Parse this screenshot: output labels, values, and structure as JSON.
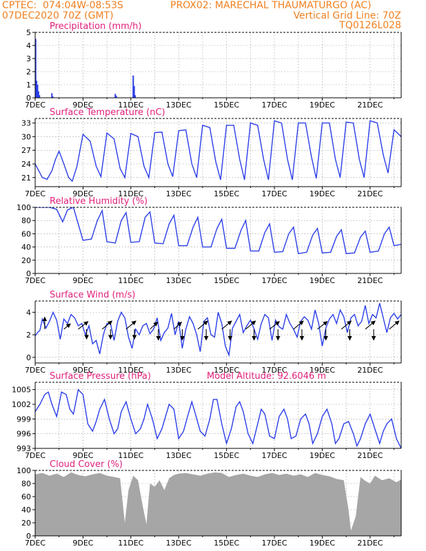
{
  "header": {
    "line1_left": "CPTEC:  074:04W-08:53S",
    "line1_right": "PROX02: MARECHAL THAUMATURGO (AC)",
    "line2_left": "07DEC2020 70Z (GMT)",
    "line2_right": "Vertical Grid Line: 70Z",
    "line3_right": "TQ0126L028"
  },
  "colors": {
    "header_text": "#f08020",
    "title_text": "#e0207a",
    "series_line": "#2a3ee8",
    "bar": "#2a3ee8",
    "cloud": "#a6a6a6",
    "arrow": "#000000"
  },
  "chart_data": [
    {
      "id": "precip",
      "type": "bar",
      "title": "Precipitation (mm/h)",
      "x_ticks": [
        "7DEC",
        "9DEC",
        "11DEC",
        "13DEC",
        "15DEC",
        "17DEC",
        "19DEC",
        "21DEC"
      ],
      "x_range_days": [
        7.0,
        22.3
      ],
      "ylim": [
        0,
        5
      ],
      "y_ticks": [
        "0",
        "1",
        "2",
        "3",
        "4",
        "5"
      ],
      "grid": "dotted",
      "x": [
        7.02,
        7.06,
        7.1,
        7.14,
        7.18,
        7.7,
        7.74,
        10.35,
        10.39,
        11.1,
        11.14,
        11.18
      ],
      "values": [
        4.5,
        1.3,
        1.0,
        0.5,
        0.2,
        0.35,
        0.1,
        0.3,
        0.15,
        1.7,
        0.9,
        0.2
      ]
    },
    {
      "id": "temp",
      "type": "line",
      "title": "Surface Temperature (nC)",
      "x_ticks": [
        "7DEC",
        "9DEC",
        "11DEC",
        "13DEC",
        "15DEC",
        "17DEC",
        "19DEC",
        "21DEC"
      ],
      "x_range_days": [
        7.0,
        22.3
      ],
      "ylim": [
        19,
        34
      ],
      "y_ticks": [
        "21",
        "24",
        "27",
        "30",
        "33"
      ],
      "grid": "dotted",
      "x": [
        7.0,
        7.15,
        7.3,
        7.5,
        7.7,
        7.85,
        8.0,
        8.2,
        8.4,
        8.55,
        8.75,
        9.0,
        9.3,
        9.55,
        9.75,
        10.0,
        10.3,
        10.55,
        10.75,
        11.0,
        11.3,
        11.55,
        11.75,
        12.0,
        12.3,
        12.55,
        12.75,
        13.0,
        13.3,
        13.55,
        13.75,
        14.0,
        14.3,
        14.55,
        14.75,
        15.0,
        15.3,
        15.55,
        15.75,
        16.0,
        16.3,
        16.55,
        16.75,
        17.0,
        17.3,
        17.55,
        17.75,
        18.0,
        18.3,
        18.55,
        18.75,
        19.0,
        19.3,
        19.55,
        19.75,
        20.0,
        20.3,
        20.55,
        20.75,
        21.0,
        21.3,
        21.55,
        21.75,
        22.0,
        22.3
      ],
      "values": [
        24.0,
        22.5,
        21.0,
        20.6,
        22.5,
        25.0,
        26.8,
        24.0,
        21.0,
        20.2,
        23.5,
        30.5,
        29.0,
        23.5,
        21.2,
        30.8,
        29.5,
        23.0,
        21.0,
        30.7,
        30.0,
        23.5,
        21.0,
        30.9,
        31.0,
        24.0,
        21.2,
        31.3,
        31.5,
        24.0,
        21.0,
        32.5,
        32.0,
        24.5,
        20.5,
        32.5,
        32.5,
        25.0,
        20.5,
        33.0,
        32.5,
        25.0,
        20.5,
        33.5,
        33.0,
        25.0,
        20.5,
        33.0,
        33.0,
        25.5,
        20.8,
        33.0,
        33.0,
        25.0,
        21.0,
        33.2,
        33.0,
        25.0,
        21.0,
        33.5,
        33.0,
        26.0,
        22.0,
        31.5,
        30.0
      ]
    },
    {
      "id": "rh",
      "type": "line",
      "title": "Relative Humidity (%)",
      "x_ticks": [
        "7DEC",
        "9DEC",
        "11DEC",
        "13DEC",
        "15DEC",
        "17DEC",
        "19DEC",
        "21DEC"
      ],
      "x_range_days": [
        7.0,
        22.3
      ],
      "ylim": [
        0,
        100
      ],
      "y_ticks": [
        "0",
        "20",
        "40",
        "60",
        "80",
        "100"
      ],
      "grid": "dotted",
      "x": [
        7.0,
        7.3,
        7.6,
        7.9,
        8.15,
        8.35,
        8.6,
        9.0,
        9.35,
        9.6,
        9.8,
        10.0,
        10.35,
        10.6,
        10.8,
        11.0,
        11.35,
        11.6,
        11.8,
        12.0,
        12.35,
        12.6,
        12.8,
        13.0,
        13.35,
        13.6,
        13.8,
        14.0,
        14.35,
        14.6,
        14.8,
        15.0,
        15.35,
        15.6,
        15.8,
        16.0,
        16.35,
        16.6,
        16.8,
        17.0,
        17.35,
        17.6,
        17.8,
        18.0,
        18.35,
        18.6,
        18.8,
        19.0,
        19.35,
        19.6,
        19.8,
        20.0,
        20.35,
        20.6,
        20.8,
        21.0,
        21.35,
        21.6,
        21.8,
        22.0,
        22.3
      ],
      "values": [
        100,
        100,
        100,
        97,
        78,
        96,
        100,
        50,
        52,
        80,
        95,
        48,
        46,
        80,
        92,
        47,
        48,
        85,
        93,
        46,
        45,
        75,
        88,
        42,
        42,
        70,
        85,
        40,
        40,
        68,
        82,
        38,
        38,
        65,
        80,
        34,
        34,
        62,
        75,
        32,
        33,
        60,
        70,
        30,
        32,
        58,
        68,
        31,
        32,
        56,
        66,
        30,
        31,
        55,
        64,
        32,
        34,
        60,
        70,
        42,
        44
      ]
    },
    {
      "id": "wind",
      "type": "line",
      "title": "Surface Wind (m/s)",
      "x_ticks": [
        "7DEC",
        "9DEC",
        "11DEC",
        "13DEC",
        "15DEC",
        "17DEC",
        "19DEC",
        "21DEC"
      ],
      "x_range_days": [
        7.0,
        22.3
      ],
      "ylim": [
        -0.5,
        5.0
      ],
      "y_ticks": [
        "0",
        "2",
        "4"
      ],
      "grid": "dotted",
      "x": [
        7.0,
        7.1,
        7.2,
        7.3,
        7.45,
        7.6,
        7.75,
        7.9,
        8.05,
        8.2,
        8.35,
        8.5,
        8.65,
        8.8,
        8.95,
        9.1,
        9.25,
        9.4,
        9.55,
        9.7,
        9.85,
        10.0,
        10.15,
        10.3,
        10.45,
        10.6,
        10.75,
        10.9,
        11.05,
        11.2,
        11.35,
        11.5,
        11.65,
        11.8,
        11.95,
        12.1,
        12.25,
        12.4,
        12.55,
        12.7,
        12.85,
        13.0,
        13.15,
        13.3,
        13.45,
        13.6,
        13.75,
        13.9,
        14.05,
        14.2,
        14.35,
        14.5,
        14.65,
        14.8,
        14.95,
        15.1,
        15.25,
        15.4,
        15.55,
        15.7,
        15.85,
        16.0,
        16.15,
        16.3,
        16.45,
        16.6,
        16.75,
        16.9,
        17.05,
        17.2,
        17.35,
        17.5,
        17.65,
        17.8,
        17.95,
        18.1,
        18.25,
        18.4,
        18.55,
        18.7,
        18.85,
        19.0,
        19.15,
        19.3,
        19.45,
        19.6,
        19.75,
        19.9,
        20.05,
        20.2,
        20.35,
        20.5,
        20.65,
        20.8,
        20.95,
        21.1,
        21.25,
        21.4,
        21.55,
        21.7,
        21.85,
        22.0,
        22.15,
        22.3
      ],
      "values": [
        1.9,
        2.2,
        2.4,
        3.4,
        2.6,
        3.2,
        4.0,
        3.3,
        1.6,
        3.4,
        3.0,
        3.8,
        3.5,
        2.8,
        3.0,
        2.0,
        2.8,
        1.2,
        1.5,
        0.3,
        2.0,
        3.0,
        3.0,
        1.5,
        3.2,
        4.0,
        3.5,
        1.8,
        0.8,
        2.5,
        2.0,
        2.8,
        3.0,
        2.1,
        2.5,
        3.5,
        1.5,
        2.2,
        2.6,
        3.9,
        2.0,
        3.2,
        0.8,
        2.5,
        3.6,
        3.0,
        2.0,
        0.5,
        3.2,
        3.5,
        2.0,
        1.8,
        4.0,
        3.0,
        1.0,
        0.2,
        2.6,
        3.2,
        3.8,
        2.2,
        2.8,
        3.3,
        2.5,
        1.6,
        3.0,
        3.8,
        3.5,
        1.5,
        3.3,
        2.7,
        2.5,
        3.8,
        3.0,
        2.5,
        1.8,
        3.2,
        3.6,
        3.3,
        2.5,
        4.2,
        3.0,
        1.0,
        2.6,
        3.4,
        3.8,
        3.0,
        4.2,
        3.6,
        2.2,
        3.5,
        3.8,
        2.8,
        3.2,
        4.6,
        3.0,
        3.8,
        3.5,
        4.8,
        3.5,
        2.2,
        3.5,
        3.9,
        3.4,
        3.8
      ],
      "vectors": [
        {
          "day": 7.4,
          "u": 0.0,
          "v": 2.2
        },
        {
          "day": 8.2,
          "u": 1.2,
          "v": 1.0
        },
        {
          "day": 8.8,
          "u": 1.8,
          "v": 1.4
        },
        {
          "day": 9.15,
          "u": 0.0,
          "v": -1.8
        },
        {
          "day": 9.8,
          "u": 1.8,
          "v": 1.5
        },
        {
          "day": 10.15,
          "u": 0.0,
          "v": -1.8
        },
        {
          "day": 10.8,
          "u": 1.8,
          "v": 1.5
        },
        {
          "day": 11.15,
          "u": 0.0,
          "v": -1.8
        },
        {
          "day": 11.8,
          "u": 1.4,
          "v": 1.3
        },
        {
          "day": 12.15,
          "u": 0.0,
          "v": -2.0
        },
        {
          "day": 12.8,
          "u": 1.4,
          "v": 1.3
        },
        {
          "day": 13.15,
          "u": 0.0,
          "v": -2.0
        },
        {
          "day": 13.8,
          "u": 1.8,
          "v": 1.5
        },
        {
          "day": 14.15,
          "u": 0.0,
          "v": -2.0
        },
        {
          "day": 14.8,
          "u": 1.8,
          "v": 1.5
        },
        {
          "day": 15.15,
          "u": 0.0,
          "v": -2.0
        },
        {
          "day": 15.8,
          "u": 1.8,
          "v": 1.5
        },
        {
          "day": 16.15,
          "u": 0.0,
          "v": -2.0
        },
        {
          "day": 16.8,
          "u": 1.8,
          "v": 1.4
        },
        {
          "day": 17.15,
          "u": 0.0,
          "v": -2.0
        },
        {
          "day": 17.8,
          "u": 1.8,
          "v": 1.5
        },
        {
          "day": 18.15,
          "u": 0.0,
          "v": -2.0
        },
        {
          "day": 18.8,
          "u": 1.8,
          "v": 1.4
        },
        {
          "day": 19.15,
          "u": 0.0,
          "v": -2.0
        },
        {
          "day": 19.8,
          "u": 1.8,
          "v": 1.5
        },
        {
          "day": 20.15,
          "u": 0.0,
          "v": -2.0
        },
        {
          "day": 20.8,
          "u": 1.8,
          "v": 1.5
        },
        {
          "day": 21.15,
          "u": 0.0,
          "v": -2.0
        },
        {
          "day": 21.8,
          "u": 1.8,
          "v": 1.5
        }
      ]
    },
    {
      "id": "pres",
      "type": "line",
      "title": "Surface Pressure (hPa)",
      "subtitle": "Model Altitude: 92.6046 m",
      "x_ticks": [
        "7DEC",
        "9DEC",
        "11DEC",
        "13DEC",
        "15DEC",
        "17DEC",
        "19DEC",
        "21DEC"
      ],
      "x_range_days": [
        7.0,
        22.3
      ],
      "ylim": [
        993,
        1006.5
      ],
      "y_ticks": [
        "993",
        "996",
        "999",
        "1002",
        "1005"
      ],
      "grid": "dotted",
      "x": [
        7.0,
        7.2,
        7.4,
        7.55,
        7.7,
        7.9,
        8.1,
        8.3,
        8.45,
        8.6,
        8.8,
        9.0,
        9.2,
        9.4,
        9.55,
        9.7,
        9.9,
        10.1,
        10.3,
        10.45,
        10.6,
        10.8,
        11.0,
        11.2,
        11.4,
        11.55,
        11.7,
        11.9,
        12.1,
        12.3,
        12.45,
        12.6,
        12.8,
        13.0,
        13.2,
        13.4,
        13.55,
        13.7,
        13.9,
        14.1,
        14.3,
        14.45,
        14.6,
        14.8,
        15.0,
        15.2,
        15.4,
        15.55,
        15.7,
        15.9,
        16.1,
        16.3,
        16.45,
        16.6,
        16.8,
        17.0,
        17.2,
        17.4,
        17.55,
        17.7,
        17.9,
        18.1,
        18.3,
        18.45,
        18.6,
        18.8,
        19.0,
        19.2,
        19.4,
        19.55,
        19.7,
        19.9,
        20.1,
        20.3,
        20.45,
        20.6,
        20.8,
        21.0,
        21.2,
        21.4,
        21.55,
        21.7,
        21.9,
        22.1,
        22.3
      ],
      "values": [
        1000.5,
        1002.0,
        1004.0,
        1004.5,
        1002.0,
        999.5,
        1004.5,
        1004.0,
        1001.0,
        1000.0,
        1005.0,
        1004.0,
        998.0,
        996.5,
        998.5,
        1001.0,
        1003.0,
        999.0,
        996.0,
        997.0,
        1000.5,
        1002.5,
        999.0,
        996.0,
        997.0,
        999.0,
        1002.0,
        999.0,
        995.0,
        997.0,
        999.5,
        1002.0,
        1001.0,
        995.0,
        996.5,
        1000.0,
        1002.5,
        1000.0,
        996.5,
        995.5,
        999.0,
        1003.0,
        1003.0,
        998.0,
        994.0,
        997.0,
        1001.5,
        1002.5,
        1000.5,
        996.0,
        994.0,
        998.0,
        1001.0,
        1000.0,
        995.5,
        995.0,
        999.5,
        1001.0,
        999.0,
        995.0,
        995.5,
        999.0,
        1000.0,
        998.0,
        994.0,
        996.0,
        999.5,
        1001.0,
        998.0,
        994.0,
        995.0,
        998.0,
        998.5,
        996.0,
        993.5,
        995.0,
        998.0,
        1000.0,
        997.0,
        994.0,
        996.5,
        998.0,
        999.0,
        995.0,
        993.0
      ]
    },
    {
      "id": "cloud",
      "type": "area",
      "title": "Cloud Cover (%)",
      "x_ticks": [
        "7DEC",
        "9DEC",
        "11DEC",
        "13DEC",
        "15DEC",
        "17DEC",
        "19DEC",
        "21DEC"
      ],
      "x_range_days": [
        7.0,
        22.3
      ],
      "ylim": [
        0,
        100
      ],
      "y_ticks": [
        "0",
        "20",
        "40",
        "60",
        "80",
        "100"
      ],
      "grid": "dotted",
      "x": [
        7.0,
        7.3,
        7.6,
        7.9,
        8.2,
        8.5,
        8.8,
        9.1,
        9.4,
        9.7,
        10.0,
        10.3,
        10.55,
        10.75,
        10.9,
        11.1,
        11.3,
        11.5,
        11.65,
        11.8,
        12.0,
        12.2,
        12.4,
        12.6,
        12.8,
        13.0,
        13.3,
        13.6,
        13.9,
        14.2,
        14.5,
        14.8,
        15.1,
        15.4,
        15.7,
        16.0,
        16.3,
        16.6,
        16.9,
        17.2,
        17.5,
        17.8,
        18.1,
        18.4,
        18.7,
        19.0,
        19.3,
        19.6,
        19.9,
        20.1,
        20.2,
        20.4,
        20.6,
        20.8,
        21.0,
        21.2,
        21.5,
        21.8,
        22.1,
        22.3
      ],
      "values": [
        94,
        96,
        92,
        95,
        90,
        97,
        93,
        91,
        94,
        96,
        92,
        90,
        88,
        20,
        70,
        92,
        85,
        45,
        18,
        80,
        75,
        85,
        70,
        88,
        93,
        95,
        96,
        94,
        92,
        95,
        97,
        96,
        90,
        93,
        95,
        92,
        90,
        94,
        96,
        93,
        95,
        92,
        94,
        90,
        96,
        93,
        91,
        87,
        85,
        40,
        8,
        30,
        90,
        84,
        80,
        92,
        85,
        88,
        82,
        86
      ]
    }
  ]
}
